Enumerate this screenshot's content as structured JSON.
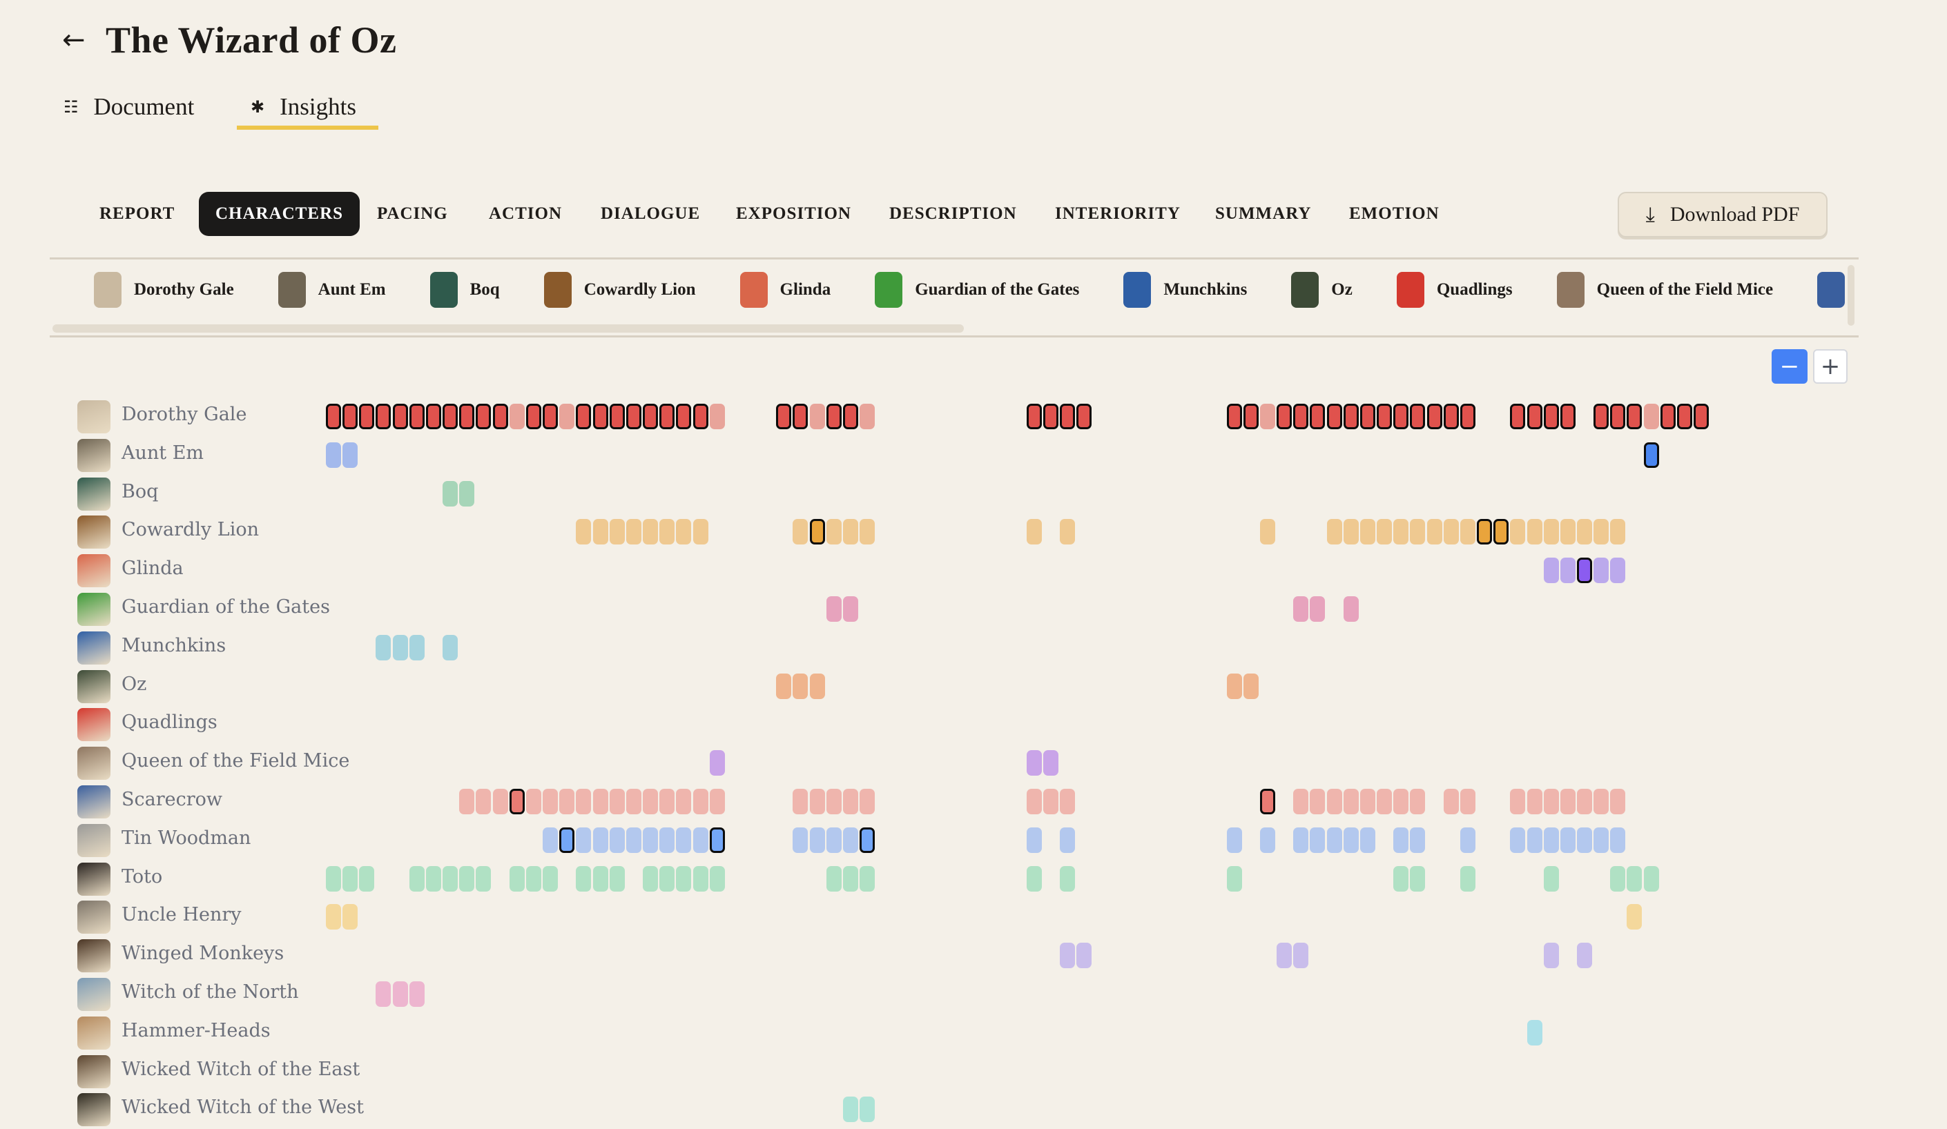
{
  "header": {
    "title": "The Wizard of Oz",
    "back_icon": "arrow-left-icon"
  },
  "view_tabs": [
    {
      "label": "Document",
      "icon": "list-icon",
      "icon_glyph": "☷",
      "active": false
    },
    {
      "label": "Insights",
      "icon": "sparkle-icon",
      "icon_glyph": "✱",
      "active": true
    }
  ],
  "accent_color": "#edc54a",
  "categories": [
    "REPORT",
    "CHARACTERS",
    "PACING",
    "ACTION",
    "DIALOGUE",
    "EXPOSITION",
    "DESCRIPTION",
    "INTERIORITY",
    "SUMMARY",
    "EMOTION"
  ],
  "active_category": "CHARACTERS",
  "download": {
    "label": "Download PDF",
    "icon": "download-icon",
    "glyph": "⤓"
  },
  "chips": [
    "Dorothy Gale",
    "Aunt Em",
    "Boq",
    "Cowardly Lion",
    "Glinda",
    "Guardian of the Gates",
    "Munchkins",
    "Oz",
    "Quadlings",
    "Queen of the Field Mice",
    "Scarecrow"
  ],
  "zoom_controls": {
    "out": "−",
    "in": "+"
  },
  "timeline": {
    "scene_count": 83,
    "characters": [
      {
        "name": "Dorothy Gale",
        "avatar": "#c9b9a0",
        "light": "#e8a49a",
        "strong": "#e0524d",
        "appearances": [
          [
            0,
            10,
            "o"
          ],
          [
            11,
            11,
            "l"
          ],
          [
            12,
            13,
            "o"
          ],
          [
            14,
            14,
            "l"
          ],
          [
            15,
            22,
            "o"
          ],
          [
            23,
            23,
            "l"
          ],
          [
            27,
            28,
            "o"
          ],
          [
            29,
            29,
            "l"
          ],
          [
            30,
            31,
            "o"
          ],
          [
            32,
            32,
            "l"
          ],
          [
            42,
            45,
            "o"
          ],
          [
            54,
            55,
            "o"
          ],
          [
            56,
            56,
            "l"
          ],
          [
            57,
            68,
            "o"
          ],
          [
            71,
            74,
            "o"
          ],
          [
            76,
            78,
            "o"
          ],
          [
            79,
            79,
            "l"
          ],
          [
            80,
            82,
            "o"
          ]
        ]
      },
      {
        "name": "Aunt Em",
        "avatar": "#6f6553",
        "light": "#a3b9ec",
        "strong": "#4a86f0",
        "appearances": [
          [
            0,
            1,
            "l"
          ],
          [
            79,
            79,
            "o"
          ]
        ]
      },
      {
        "name": "Boq",
        "avatar": "#2f5a4c",
        "light": "#a6d5b8",
        "strong": "#6cbf8d",
        "appearances": [
          [
            7,
            8,
            "l"
          ]
        ]
      },
      {
        "name": "Cowardly Lion",
        "avatar": "#8a5a2b",
        "light": "#efc991",
        "strong": "#e9a43c",
        "appearances": [
          [
            15,
            22,
            "l"
          ],
          [
            28,
            28,
            "l"
          ],
          [
            29,
            29,
            "o"
          ],
          [
            30,
            32,
            "l"
          ],
          [
            42,
            42,
            "l"
          ],
          [
            44,
            44,
            "l"
          ],
          [
            56,
            56,
            "l"
          ],
          [
            60,
            68,
            "l"
          ],
          [
            69,
            70,
            "o"
          ],
          [
            71,
            77,
            "l"
          ]
        ]
      },
      {
        "name": "Glinda",
        "avatar": "#d9664a",
        "light": "#bba9ec",
        "strong": "#8b5cf0",
        "appearances": [
          [
            73,
            74,
            "l"
          ],
          [
            75,
            75,
            "o"
          ],
          [
            76,
            77,
            "l"
          ]
        ]
      },
      {
        "name": "Guardian of the Gates",
        "avatar": "#3f9a3a",
        "light": "#e7a3bd",
        "strong": "#d86c95",
        "appearances": [
          [
            30,
            31,
            "l"
          ],
          [
            58,
            59,
            "l"
          ],
          [
            61,
            61,
            "l"
          ]
        ]
      },
      {
        "name": "Munchkins",
        "avatar": "#2f5fa5",
        "light": "#a6d4de",
        "strong": "#5cb3c6",
        "appearances": [
          [
            3,
            5,
            "l"
          ],
          [
            7,
            7,
            "l"
          ]
        ]
      },
      {
        "name": "Oz",
        "avatar": "#3c4a36",
        "light": "#efb48d",
        "strong": "#e58a4f",
        "appearances": [
          [
            27,
            29,
            "l"
          ],
          [
            54,
            55,
            "l"
          ]
        ]
      },
      {
        "name": "Quadlings",
        "avatar": "#d4392f",
        "light": "#f0b0a0",
        "strong": "#e06b55",
        "appearances": []
      },
      {
        "name": "Queen of the Field Mice",
        "avatar": "#8e7660",
        "light": "#c9a4e8",
        "strong": "#a56bd8",
        "appearances": [
          [
            23,
            23,
            "l"
          ],
          [
            42,
            43,
            "l"
          ]
        ]
      },
      {
        "name": "Scarecrow",
        "avatar": "#3a5f9e",
        "light": "#efb5ad",
        "strong": "#e87b73",
        "appearances": [
          [
            8,
            10,
            "l"
          ],
          [
            11,
            11,
            "o"
          ],
          [
            12,
            23,
            "l"
          ],
          [
            28,
            32,
            "l"
          ],
          [
            42,
            44,
            "l"
          ],
          [
            56,
            56,
            "o"
          ],
          [
            58,
            65,
            "l"
          ],
          [
            67,
            68,
            "l"
          ],
          [
            71,
            77,
            "l"
          ]
        ]
      },
      {
        "name": "Tin Woodman",
        "avatar": "#9a9a98",
        "light": "#b3c8ee",
        "strong": "#74a7f7",
        "appearances": [
          [
            13,
            13,
            "l"
          ],
          [
            14,
            14,
            "o"
          ],
          [
            15,
            22,
            "l"
          ],
          [
            23,
            23,
            "o"
          ],
          [
            28,
            31,
            "l"
          ],
          [
            32,
            32,
            "o"
          ],
          [
            42,
            42,
            "l"
          ],
          [
            44,
            44,
            "l"
          ],
          [
            54,
            54,
            "l"
          ],
          [
            56,
            56,
            "l"
          ],
          [
            58,
            62,
            "l"
          ],
          [
            64,
            65,
            "l"
          ],
          [
            68,
            68,
            "l"
          ],
          [
            71,
            77,
            "l"
          ]
        ]
      },
      {
        "name": "Toto",
        "avatar": "#2a2420",
        "light": "#b0e1c4",
        "strong": "#6cc496",
        "appearances": [
          [
            0,
            2,
            "l"
          ],
          [
            5,
            9,
            "l"
          ],
          [
            11,
            13,
            "l"
          ],
          [
            15,
            17,
            "l"
          ],
          [
            19,
            23,
            "l"
          ],
          [
            30,
            32,
            "l"
          ],
          [
            42,
            42,
            "l"
          ],
          [
            44,
            44,
            "l"
          ],
          [
            54,
            54,
            "l"
          ],
          [
            64,
            65,
            "l"
          ],
          [
            68,
            68,
            "l"
          ],
          [
            73,
            73,
            "l"
          ],
          [
            77,
            79,
            "l"
          ]
        ]
      },
      {
        "name": "Uncle Henry",
        "avatar": "#7d7468",
        "light": "#f4d89c",
        "strong": "#e9b94a",
        "appearances": [
          [
            0,
            1,
            "l"
          ],
          [
            78,
            78,
            "l"
          ]
        ]
      },
      {
        "name": "Winged Monkeys",
        "avatar": "#4a3524",
        "light": "#c9bdeb",
        "strong": "#9a83e0",
        "appearances": [
          [
            44,
            45,
            "l"
          ],
          [
            57,
            58,
            "l"
          ],
          [
            73,
            73,
            "l"
          ],
          [
            75,
            75,
            "l"
          ]
        ]
      },
      {
        "name": "Witch of the North",
        "avatar": "#7c9bb5",
        "light": "#edb5cf",
        "strong": "#de7aa8",
        "appearances": [
          [
            3,
            5,
            "l"
          ]
        ]
      },
      {
        "name": "Hammer-Heads",
        "avatar": "#b58a5e",
        "light": "#ace0e8",
        "strong": "#5ec3d3",
        "appearances": [
          [
            72,
            72,
            "l"
          ]
        ]
      },
      {
        "name": "Wicked Witch of the East",
        "avatar": "#5b4530",
        "light": "#d8c0a0",
        "strong": "#b08a5a",
        "appearances": []
      },
      {
        "name": "Wicked Witch of the West",
        "avatar": "#2e2a20",
        "light": "#ade3d6",
        "strong": "#5cc4aa",
        "appearances": [
          [
            31,
            32,
            "l"
          ]
        ]
      }
    ]
  }
}
